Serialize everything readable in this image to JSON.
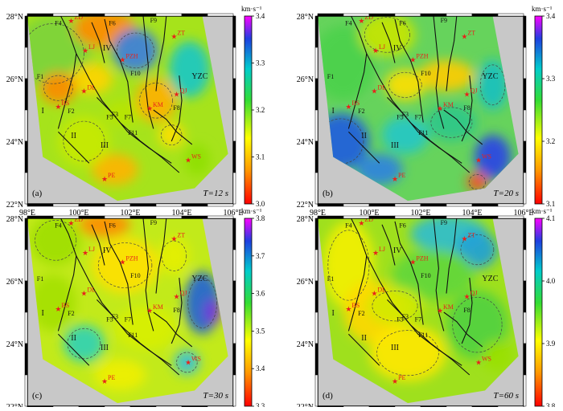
{
  "figure": {
    "colorbar_unit": "km·s⁻¹",
    "x_ticks": [
      "98°E",
      "100°E",
      "102°E",
      "104°E",
      "106°E"
    ],
    "y_ticks": [
      "22°N",
      "24°N",
      "26°N",
      "28°N"
    ],
    "colors": {
      "land_mask": "#c8c8c8",
      "fault_line": "#111111",
      "station": "#e8221b",
      "station_label": "#e8221b"
    }
  },
  "panels": [
    {
      "id": "a",
      "label": "(a)",
      "period": "T=12 s",
      "colorbar": {
        "ticks": [
          "3.4",
          "3.3",
          "3.2",
          "3.1",
          "3.0"
        ],
        "range": [
          3.0,
          3.4
        ]
      }
    },
    {
      "id": "b",
      "label": "(b)",
      "period": "T=20 s",
      "colorbar": {
        "ticks": [
          "3.4",
          "3.3",
          "3.2",
          "3.1"
        ],
        "range": [
          3.1,
          3.4
        ]
      }
    },
    {
      "id": "c",
      "label": "(c)",
      "period": "T=30 s",
      "colorbar": {
        "ticks": [
          "3.8",
          "3.7",
          "3.6",
          "3.5",
          "3.4",
          "3.3"
        ],
        "range": [
          3.3,
          3.8
        ]
      }
    },
    {
      "id": "d",
      "label": "(d)",
      "period": "T=60 s",
      "colorbar": {
        "ticks": [
          "4.1",
          "4.0",
          "3.9",
          "3.8"
        ],
        "range": [
          3.8,
          4.1
        ]
      }
    }
  ],
  "stations": [
    {
      "code": "ZD",
      "lon": 99.7,
      "lat": 27.85
    },
    {
      "code": "LJ",
      "lon": 100.25,
      "lat": 26.9
    },
    {
      "code": "PZH",
      "lon": 101.7,
      "lat": 26.6
    },
    {
      "code": "ZT",
      "lon": 103.7,
      "lat": 27.35
    },
    {
      "code": "DL",
      "lon": 100.2,
      "lat": 25.6
    },
    {
      "code": "BS",
      "lon": 99.2,
      "lat": 25.1
    },
    {
      "code": "KM",
      "lon": 102.75,
      "lat": 25.05
    },
    {
      "code": "QJ",
      "lon": 103.8,
      "lat": 25.5
    },
    {
      "code": "WS",
      "lon": 104.25,
      "lat": 23.4
    },
    {
      "code": "PE",
      "lon": 101.0,
      "lat": 22.8
    }
  ],
  "region_labels": [
    "I",
    "II",
    "III",
    "IV",
    "YZC"
  ],
  "fault_labels": [
    "F1",
    "F2",
    "F3",
    "F4",
    "F5",
    "F6",
    "F7",
    "F8",
    "F9",
    "F10",
    "F11"
  ]
}
